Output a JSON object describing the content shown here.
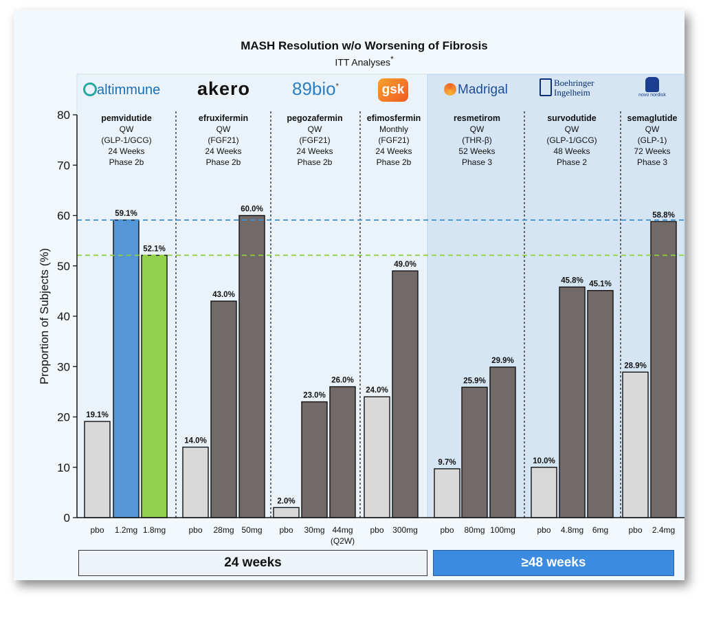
{
  "title": "MASH Resolution w/o Worsening of Fibrosis",
  "subtitle": "ITT Analyses",
  "subtitle_mark": "*",
  "colors": {
    "placebo": "#d9d9d9",
    "comparator": "#716a69",
    "pemvidutide_12": "#5596d8",
    "pemvidutide_18": "#92d050",
    "ref_line_blue": "#3b8fd9",
    "ref_line_green": "#8ccf3a",
    "panel_48": "#d5e5f3"
  },
  "groups": [
    {
      "logo": "altimmune",
      "logo_icon": "pinwheel-icon",
      "drug": "pemvidutide",
      "lines": [
        "QW",
        "(GLP-1/GCG)",
        "24 Weeks",
        "Phase 2b"
      ]
    },
    {
      "logo": "akero",
      "drug": "efruxifermin",
      "lines": [
        "QW",
        "(FGF21)",
        "24 Weeks",
        "Phase 2b"
      ]
    },
    {
      "logo": "89bio",
      "logo_mark": "*",
      "drug": "pegozafermin",
      "lines": [
        "QW",
        "(FGF21)",
        "24 Weeks",
        "Phase 2b"
      ]
    },
    {
      "logo": "gsk",
      "drug": "efimosfermin",
      "lines": [
        "Monthly",
        "(FGF21)",
        "24 Weeks",
        "Phase 2b"
      ]
    },
    {
      "logo": "Madrigal",
      "logo_icon": "madrigal-swirl-icon",
      "drug": "resmetirom",
      "lines": [
        "QW",
        "(THR-β)",
        "52 Weeks",
        "Phase 3"
      ]
    },
    {
      "logo": "Boehringer Ingelheim",
      "logo_icon": "boehringer-building-icon",
      "drug": "survodutide",
      "lines": [
        "QW",
        "(GLP-1/GCG)",
        "48 Weeks",
        "Phase 2"
      ]
    },
    {
      "logo": "novo nordisk",
      "logo_icon": "apis-bull-icon",
      "drug": "semaglutide",
      "lines": [
        "QW",
        "(GLP-1)",
        "72 Weeks",
        "Phase 3"
      ]
    }
  ],
  "chart_data": {
    "type": "bar",
    "title": "MASH Resolution w/o Worsening of Fibrosis",
    "subtitle": "ITT Analyses",
    "ylabel": "Proportion of Subjects (%)",
    "ylim": [
      0,
      80
    ],
    "yticks": [
      0,
      10,
      20,
      30,
      40,
      50,
      60,
      70,
      80
    ],
    "reference_lines": [
      59.1,
      52.1
    ],
    "grid": false,
    "bars": [
      {
        "group": 0,
        "label": "pbo",
        "value": 19.1,
        "value_label": "19.1%",
        "kind": "placebo"
      },
      {
        "group": 0,
        "label": "1.2mg",
        "value": 59.1,
        "value_label": "59.1%",
        "kind": "pemvidutide_12"
      },
      {
        "group": 0,
        "label": "1.8mg",
        "value": 52.1,
        "value_label": "52.1%",
        "kind": "pemvidutide_18"
      },
      {
        "group": 1,
        "label": "pbo",
        "value": 14.0,
        "value_label": "14.0%",
        "kind": "placebo"
      },
      {
        "group": 1,
        "label": "28mg",
        "value": 43.0,
        "value_label": "43.0%",
        "kind": "comparator"
      },
      {
        "group": 1,
        "label": "50mg",
        "value": 60.0,
        "value_label": "60.0%",
        "kind": "comparator"
      },
      {
        "group": 2,
        "label": "pbo",
        "value": 2.0,
        "value_label": "2.0%",
        "kind": "placebo"
      },
      {
        "group": 2,
        "label": "30mg",
        "value": 23.0,
        "value_label": "23.0%",
        "kind": "comparator"
      },
      {
        "group": 2,
        "label": "44mg",
        "label2": "(Q2W)",
        "value": 26.0,
        "value_label": "26.0%",
        "kind": "comparator"
      },
      {
        "group": 3,
        "label": "pbo",
        "value": 24.0,
        "value_label": "24.0%",
        "kind": "placebo"
      },
      {
        "group": 3,
        "label": "300mg",
        "value": 49.0,
        "value_label": "49.0%",
        "kind": "comparator"
      },
      {
        "group": 4,
        "label": "pbo",
        "value": 9.7,
        "value_label": "9.7%",
        "kind": "placebo"
      },
      {
        "group": 4,
        "label": "80mg",
        "value": 25.9,
        "value_label": "25.9%",
        "kind": "comparator"
      },
      {
        "group": 4,
        "label": "100mg",
        "value": 29.9,
        "value_label": "29.9%",
        "kind": "comparator"
      },
      {
        "group": 5,
        "label": "pbo",
        "value": 10.0,
        "value_label": "10.0%",
        "kind": "placebo"
      },
      {
        "group": 5,
        "label": "4.8mg",
        "value": 45.8,
        "value_label": "45.8%",
        "kind": "comparator"
      },
      {
        "group": 5,
        "label": "6mg",
        "value": 45.1,
        "value_label": "45.1%",
        "kind": "comparator"
      },
      {
        "group": 6,
        "label": "pbo",
        "value": 28.9,
        "value_label": "28.9%",
        "kind": "placebo"
      },
      {
        "group": 6,
        "label": "2.4mg",
        "value": 58.8,
        "value_label": "58.8%",
        "kind": "comparator"
      }
    ]
  },
  "periods": {
    "short": "24 weeks",
    "long": "≥48 weeks"
  }
}
